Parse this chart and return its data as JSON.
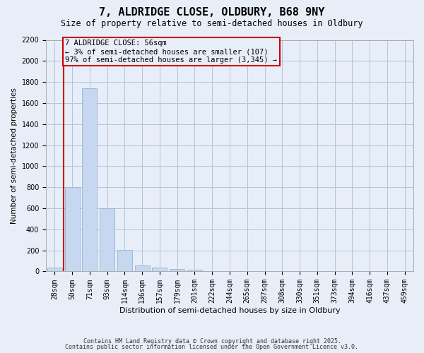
{
  "title": "7, ALDRIDGE CLOSE, OLDBURY, B68 9NY",
  "subtitle": "Size of property relative to semi-detached houses in Oldbury",
  "xlabel": "Distribution of semi-detached houses by size in Oldbury",
  "ylabel": "Number of semi-detached properties",
  "categories": [
    "28sqm",
    "50sqm",
    "71sqm",
    "93sqm",
    "114sqm",
    "136sqm",
    "157sqm",
    "179sqm",
    "201sqm",
    "222sqm",
    "244sqm",
    "265sqm",
    "287sqm",
    "308sqm",
    "330sqm",
    "351sqm",
    "373sqm",
    "394sqm",
    "416sqm",
    "437sqm",
    "459sqm"
  ],
  "values": [
    40,
    800,
    1740,
    600,
    205,
    60,
    35,
    20,
    15,
    0,
    0,
    0,
    0,
    0,
    0,
    0,
    0,
    0,
    0,
    0,
    0
  ],
  "bar_color": "#c5d8f0",
  "bar_edge_color": "#a0b8d8",
  "vline_color": "#cc0000",
  "annotation_text": "7 ALDRIDGE CLOSE: 56sqm\n← 3% of semi-detached houses are smaller (107)\n97% of semi-detached houses are larger (3,345) →",
  "ylim": [
    0,
    2200
  ],
  "yticks": [
    0,
    200,
    400,
    600,
    800,
    1000,
    1200,
    1400,
    1600,
    1800,
    2000,
    2200
  ],
  "grid_color": "#b0c4de",
  "bg_color": "#e8eef8",
  "footer1": "Contains HM Land Registry data © Crown copyright and database right 2025.",
  "footer2": "Contains public sector information licensed under the Open Government Licence v3.0.",
  "title_fontsize": 11,
  "subtitle_fontsize": 8.5,
  "annotation_fontsize": 7.5,
  "tick_fontsize": 7,
  "ylabel_fontsize": 7.5,
  "xlabel_fontsize": 8
}
